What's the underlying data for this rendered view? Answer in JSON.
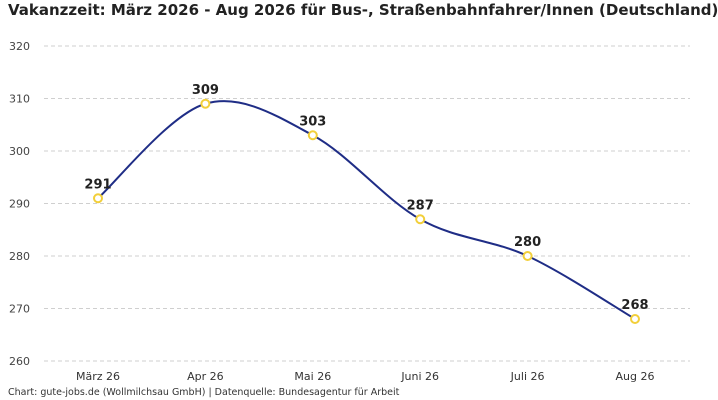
{
  "chart_data": {
    "type": "line",
    "title": "Vakanzzeit: März 2026 - Aug 2026 für Bus-, Straßenbahnfahrer/Innen (Deutschland)",
    "categories": [
      "März 26",
      "Apr 26",
      "Mai 26",
      "Juni 26",
      "Juli 26",
      "Aug 26"
    ],
    "values": [
      291,
      309,
      303,
      287,
      280,
      268
    ],
    "data_labels": [
      "291",
      "309",
      "303",
      "287",
      "280",
      "268"
    ],
    "yticks": [
      260,
      270,
      280,
      290,
      300,
      310,
      320
    ],
    "ylim": [
      260,
      320
    ],
    "grid": true,
    "line_color": "#1f2d86",
    "marker_color": "#f2cf3a",
    "footer": "Chart: gute-jobs.de (Wollmilchsau GmbH) | Datenquelle: Bundesagentur für Arbeit"
  }
}
